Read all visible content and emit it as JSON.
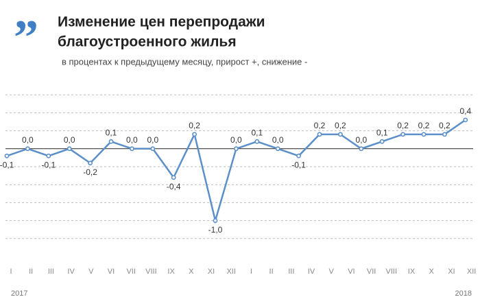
{
  "chart_data": {
    "type": "line",
    "title": [
      "Изменение цен перепродажи",
      "благоустроенного жилья"
    ],
    "subtitle": "в процентах к предыдущему месяцу, прирост +, снижение -",
    "categories": [
      "I",
      "II",
      "III",
      "IV",
      "V",
      "VI",
      "VII",
      "VIII",
      "IX",
      "X",
      "XI",
      "XII",
      "I",
      "II",
      "III",
      "IV",
      "V",
      "VI",
      "VII",
      "VIII",
      "IX",
      "X",
      "XI",
      "XII"
    ],
    "year_labels": [
      "2017",
      "2018"
    ],
    "series": [
      {
        "color": "#5b8fc9",
        "values": [
          -0.1,
          0.0,
          -0.1,
          0.0,
          -0.2,
          0.1,
          0.0,
          0.0,
          -0.4,
          0.2,
          -1.0,
          0.0,
          0.1,
          0.0,
          -0.1,
          0.2,
          0.2,
          0.0,
          0.1,
          0.2,
          0.2,
          0.2,
          0.4,
          null
        ],
        "value_labels": [
          "-0,1",
          "0,0",
          "-0,1",
          "0,0",
          "-0,2",
          "0,1",
          "0,0",
          "0,0",
          "-0,4",
          "0,2",
          "-1,0",
          "0,0",
          "0,1",
          "0,0",
          "-0,1",
          "0,2",
          "0,2",
          "0,0",
          "0,1",
          "0,2",
          "0,2",
          "0,2",
          "0,4",
          null
        ]
      }
    ],
    "ylim": [
      -1.5,
      1.0
    ],
    "yticks": [
      -1.25,
      -1.0,
      -0.75,
      -0.5,
      -0.25,
      0,
      0.25,
      0.5,
      0.75
    ],
    "grid": true
  }
}
